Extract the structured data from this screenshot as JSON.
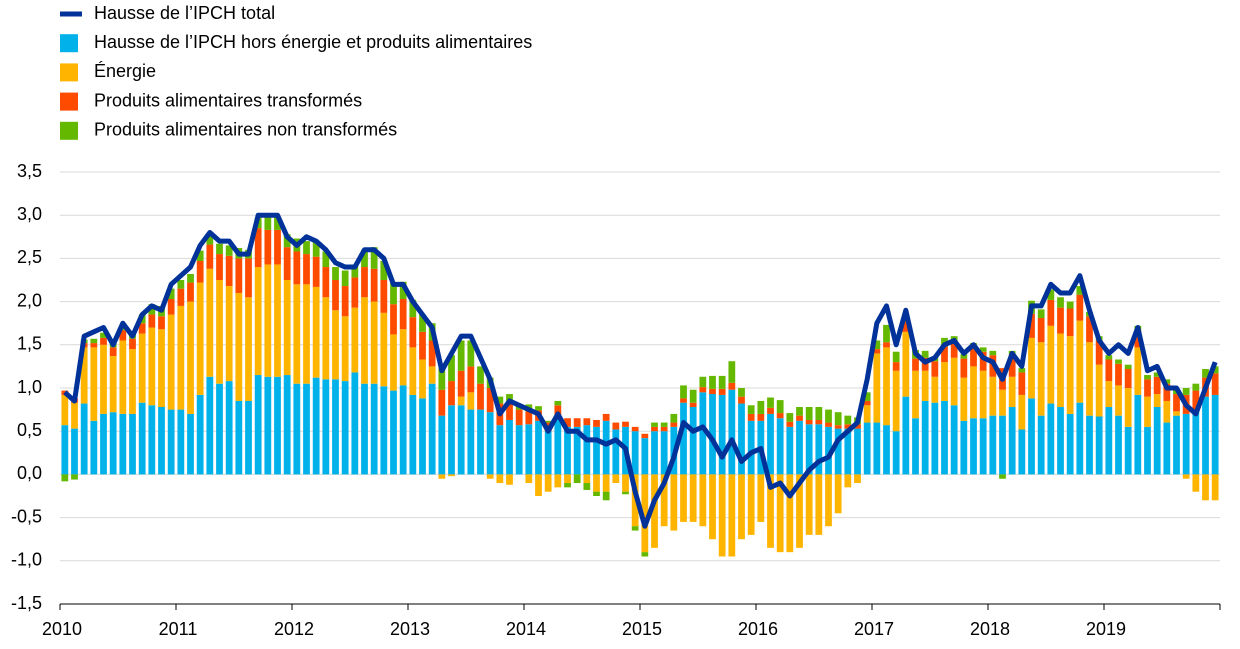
{
  "chart_data": {
    "type": "bar",
    "stacked": true,
    "categories": [
      "2010",
      null,
      null,
      null,
      null,
      null,
      null,
      null,
      null,
      null,
      null,
      null,
      "2011",
      null,
      null,
      null,
      null,
      null,
      null,
      null,
      null,
      null,
      null,
      null,
      "2012",
      null,
      null,
      null,
      null,
      null,
      null,
      null,
      null,
      null,
      null,
      null,
      "2013",
      null,
      null,
      null,
      null,
      null,
      null,
      null,
      null,
      null,
      null,
      null,
      "2014",
      null,
      null,
      null,
      null,
      null,
      null,
      null,
      null,
      null,
      null,
      null,
      "2015",
      null,
      null,
      null,
      null,
      null,
      null,
      null,
      null,
      null,
      null,
      null,
      "2016",
      null,
      null,
      null,
      null,
      null,
      null,
      null,
      null,
      null,
      null,
      null,
      "2017",
      null,
      null,
      null,
      null,
      null,
      null,
      null,
      null,
      null,
      null,
      null,
      "2018",
      null,
      null,
      null,
      null,
      null,
      null,
      null,
      null,
      null,
      null,
      null,
      "2019",
      null,
      null,
      null,
      null,
      null,
      null,
      null,
      null,
      null,
      null,
      null
    ],
    "series": [
      {
        "name": "Hausse de l’IPCH total",
        "type": "line",
        "color": "#003299",
        "values": [
          0.95,
          0.85,
          1.6,
          1.65,
          1.7,
          1.5,
          1.75,
          1.6,
          1.85,
          1.95,
          1.9,
          2.2,
          2.3,
          2.4,
          2.65,
          2.8,
          2.7,
          2.7,
          2.55,
          2.55,
          3.0,
          3.0,
          3.0,
          2.75,
          2.65,
          2.75,
          2.7,
          2.6,
          2.45,
          2.4,
          2.4,
          2.6,
          2.6,
          2.5,
          2.2,
          2.2,
          2.0,
          1.85,
          1.7,
          1.2,
          1.4,
          1.6,
          1.6,
          1.35,
          1.1,
          0.7,
          0.85,
          0.8,
          0.75,
          0.7,
          0.5,
          0.7,
          0.5,
          0.5,
          0.4,
          0.4,
          0.35,
          0.4,
          0.3,
          -0.2,
          -0.6,
          -0.3,
          -0.1,
          0.2,
          0.6,
          0.5,
          0.55,
          0.4,
          0.2,
          0.4,
          0.15,
          0.25,
          0.3,
          -0.15,
          -0.1,
          -0.25,
          -0.1,
          0.05,
          0.15,
          0.2,
          0.4,
          0.5,
          0.6,
          1.1,
          1.75,
          1.95,
          1.5,
          1.9,
          1.4,
          1.3,
          1.35,
          1.5,
          1.55,
          1.4,
          1.5,
          1.35,
          1.3,
          1.1,
          1.4,
          1.25,
          1.95,
          1.95,
          2.2,
          2.1,
          2.1,
          2.3,
          1.9,
          1.55,
          1.4,
          1.5,
          1.4,
          1.7,
          1.2,
          1.25,
          1.0,
          1.0,
          0.8,
          0.7,
          1.0,
          1.3
        ]
      },
      {
        "name": "Hausse de l’IPCH hors énergie et produits alimentaires",
        "type": "bar",
        "color": "#00b1ea",
        "values": [
          0.57,
          0.53,
          0.82,
          0.62,
          0.7,
          0.72,
          0.7,
          0.7,
          0.83,
          0.8,
          0.78,
          0.75,
          0.75,
          0.7,
          0.92,
          1.13,
          1.05,
          1.08,
          0.85,
          0.85,
          1.15,
          1.13,
          1.13,
          1.15,
          1.05,
          1.05,
          1.12,
          1.1,
          1.1,
          1.08,
          1.18,
          1.05,
          1.05,
          1.02,
          0.97,
          1.03,
          0.92,
          0.88,
          1.05,
          0.68,
          0.8,
          0.8,
          0.75,
          0.75,
          0.72,
          0.57,
          0.63,
          0.57,
          0.58,
          0.62,
          0.5,
          0.68,
          0.55,
          0.55,
          0.57,
          0.55,
          0.62,
          0.52,
          0.55,
          0.5,
          0.42,
          0.5,
          0.5,
          0.55,
          0.83,
          0.78,
          0.95,
          0.93,
          0.92,
          0.98,
          0.82,
          0.62,
          0.62,
          0.7,
          0.65,
          0.55,
          0.62,
          0.58,
          0.58,
          0.55,
          0.53,
          0.53,
          0.53,
          0.6,
          0.6,
          0.57,
          0.5,
          0.9,
          0.65,
          0.85,
          0.83,
          0.85,
          0.8,
          0.62,
          0.65,
          0.65,
          0.68,
          0.68,
          0.78,
          0.52,
          0.88,
          0.68,
          0.82,
          0.78,
          0.7,
          0.83,
          0.68,
          0.67,
          0.78,
          0.68,
          0.55,
          0.92,
          0.55,
          0.78,
          0.6,
          0.68,
          0.7,
          0.75,
          0.9,
          0.92
        ]
      },
      {
        "name": "Énergie",
        "type": "bar",
        "color": "#ffb400",
        "values": [
          0.35,
          0.3,
          0.65,
          0.85,
          0.8,
          0.65,
          0.85,
          0.75,
          0.8,
          0.9,
          0.9,
          1.1,
          1.2,
          1.3,
          1.3,
          1.25,
          1.2,
          1.1,
          1.25,
          1.2,
          1.25,
          1.3,
          1.3,
          1.1,
          1.15,
          1.15,
          1.05,
          0.95,
          0.8,
          0.75,
          0.75,
          1.0,
          0.95,
          0.85,
          0.65,
          0.65,
          0.55,
          0.45,
          0.2,
          -0.05,
          -0.02,
          0.1,
          0.2,
          0.0,
          -0.05,
          -0.1,
          -0.12,
          0.0,
          -0.1,
          -0.25,
          -0.2,
          -0.15,
          -0.1,
          0.0,
          -0.1,
          -0.2,
          -0.2,
          -0.1,
          -0.2,
          -0.6,
          -0.9,
          -0.85,
          -0.6,
          -0.65,
          -0.55,
          -0.55,
          -0.6,
          -0.75,
          -0.95,
          -0.95,
          -0.75,
          -0.7,
          -0.55,
          -0.85,
          -0.9,
          -0.9,
          -0.85,
          -0.7,
          -0.7,
          -0.6,
          -0.45,
          -0.15,
          -0.1,
          0.2,
          0.8,
          0.9,
          0.7,
          0.75,
          0.55,
          0.35,
          0.3,
          0.45,
          0.55,
          0.5,
          0.6,
          0.55,
          0.45,
          0.3,
          0.35,
          0.4,
          0.7,
          0.85,
          0.9,
          0.85,
          0.9,
          0.95,
          0.85,
          0.6,
          0.3,
          0.35,
          0.45,
          0.55,
          0.35,
          0.15,
          0.25,
          0.05,
          -0.05,
          -0.2,
          -0.3,
          -0.3
        ]
      },
      {
        "name": "Produits alimentaires transformés",
        "type": "bar",
        "color": "#ff4b00",
        "values": [
          0.05,
          0.05,
          0.05,
          0.05,
          0.08,
          0.1,
          0.12,
          0.12,
          0.12,
          0.15,
          0.15,
          0.18,
          0.2,
          0.22,
          0.25,
          0.28,
          0.3,
          0.35,
          0.4,
          0.45,
          0.45,
          0.4,
          0.4,
          0.38,
          0.38,
          0.35,
          0.35,
          0.35,
          0.35,
          0.35,
          0.35,
          0.35,
          0.38,
          0.38,
          0.35,
          0.35,
          0.35,
          0.32,
          0.3,
          0.3,
          0.28,
          0.3,
          0.3,
          0.3,
          0.28,
          0.25,
          0.2,
          0.18,
          0.15,
          0.12,
          0.1,
          0.12,
          0.1,
          0.1,
          0.08,
          0.08,
          0.08,
          0.08,
          0.06,
          0.05,
          0.05,
          0.05,
          0.05,
          0.05,
          0.05,
          0.05,
          0.06,
          0.06,
          0.07,
          0.08,
          0.08,
          0.08,
          0.08,
          0.07,
          0.06,
          0.06,
          0.06,
          0.05,
          0.05,
          0.05,
          0.04,
          0.05,
          0.05,
          0.05,
          0.05,
          0.06,
          0.1,
          0.12,
          0.14,
          0.15,
          0.18,
          0.18,
          0.2,
          0.22,
          0.22,
          0.22,
          0.25,
          0.25,
          0.25,
          0.26,
          0.28,
          0.28,
          0.3,
          0.3,
          0.32,
          0.3,
          0.3,
          0.28,
          0.25,
          0.25,
          0.22,
          0.2,
          0.2,
          0.2,
          0.2,
          0.2,
          0.22,
          0.22,
          0.22,
          0.25
        ]
      },
      {
        "name": "Produits alimentaires non transformés",
        "type": "bar",
        "color": "#65b800",
        "values": [
          -0.08,
          -0.06,
          0.04,
          0.05,
          0.06,
          0.06,
          0.05,
          0.08,
          0.1,
          0.12,
          0.12,
          0.12,
          0.1,
          0.1,
          0.12,
          0.12,
          0.12,
          0.12,
          0.12,
          0.1,
          0.12,
          0.15,
          0.15,
          0.15,
          0.15,
          0.15,
          0.18,
          0.18,
          0.15,
          0.18,
          0.15,
          0.2,
          0.25,
          0.22,
          0.25,
          0.2,
          0.2,
          0.2,
          0.2,
          0.25,
          0.3,
          0.35,
          0.3,
          0.2,
          0.12,
          0.08,
          0.1,
          0.05,
          0.08,
          0.05,
          0.02,
          0.05,
          -0.05,
          -0.1,
          -0.08,
          -0.05,
          -0.1,
          0.0,
          -0.03,
          -0.05,
          -0.05,
          0.05,
          0.05,
          0.1,
          0.15,
          0.15,
          0.12,
          0.15,
          0.15,
          0.25,
          0.1,
          0.1,
          0.15,
          0.12,
          0.15,
          0.1,
          0.1,
          0.15,
          0.15,
          0.15,
          0.15,
          0.1,
          0.08,
          0.1,
          0.1,
          0.2,
          0.12,
          0.08,
          0.1,
          0.08,
          0.05,
          0.1,
          0.05,
          0.05,
          0.05,
          0.05,
          0.05,
          -0.05,
          0.05,
          0.05,
          0.15,
          0.1,
          0.12,
          0.12,
          0.08,
          0.1,
          0.05,
          0.05,
          0.05,
          0.05,
          0.05,
          0.05,
          0.05,
          0.05,
          0.05,
          0.05,
          0.08,
          0.08,
          0.1,
          0.08
        ]
      }
    ],
    "ylim": [
      -1.5,
      3.5
    ],
    "yticks": [
      {
        "value": -1.5,
        "label": "-1,5"
      },
      {
        "value": -1.0,
        "label": "-1,0"
      },
      {
        "value": -0.5,
        "label": "-0,5"
      },
      {
        "value": 0.0,
        "label": "0,0"
      },
      {
        "value": 0.5,
        "label": "0,5"
      },
      {
        "value": 1.0,
        "label": "1,0"
      },
      {
        "value": 1.5,
        "label": "1,5"
      },
      {
        "value": 2.0,
        "label": "2,0"
      },
      {
        "value": 2.5,
        "label": "2,5"
      },
      {
        "value": 3.0,
        "label": "3,0"
      },
      {
        "value": 3.5,
        "label": "3,5"
      }
    ],
    "grid": true,
    "legend": "top-left"
  }
}
